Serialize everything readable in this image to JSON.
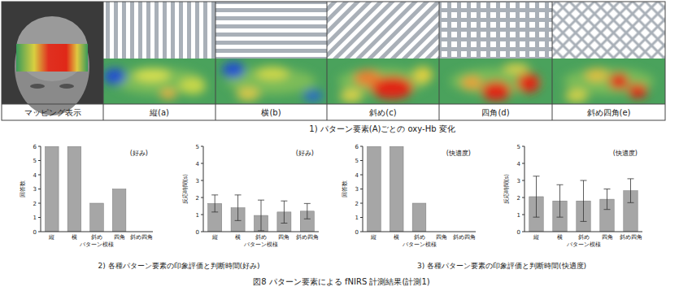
{
  "figure": {
    "title": "図8 パターン要素による fNIRS 計測結果(計測1)",
    "panel_1": {
      "caption": "1) パターン要素(A)ごとの oxy-Hb 変化",
      "columns": [
        "マッピング表示",
        "縦(a)",
        "横(b)",
        "斜め(c)",
        "四角(d)",
        "斜め四角(e)"
      ]
    },
    "captions": [
      "2) 各種パターン要素の印象評価と判断時間(好み)",
      "3) 各種パターン要素の印象評価と判断時間(快適度)"
    ]
  },
  "chart_data": [
    {
      "type": "bar",
      "annotation": "(好み)",
      "x_label": "パターン模様",
      "y_label": "回答数",
      "categories": [
        "縦",
        "横",
        "斜め",
        "四角",
        "斜め四角"
      ],
      "values": [
        6,
        6,
        2,
        3,
        0
      ],
      "color": "#a6a6a6",
      "ylim": [
        0,
        6
      ],
      "yticks": [
        0,
        1,
        2,
        3,
        4,
        5,
        6
      ],
      "grid": false
    },
    {
      "type": "bar",
      "annotation": "(好み)",
      "x_label": "パターン模様",
      "y_label": "反応時間(s)",
      "categories": [
        "縦",
        "横",
        "斜め",
        "四角",
        "斜め四角"
      ],
      "values": [
        1.65,
        1.4,
        0.95,
        1.15,
        1.2
      ],
      "errors": [
        0.5,
        0.75,
        0.9,
        0.65,
        0.45
      ],
      "color": "#a6a6a6",
      "ylim": [
        0,
        5
      ],
      "yticks": [
        0,
        1,
        2,
        3,
        4,
        5
      ],
      "grid": false
    },
    {
      "type": "bar",
      "annotation": "(快適度)",
      "x_label": "パターン模様",
      "y_label": "回答数",
      "categories": [
        "縦",
        "横",
        "斜め",
        "四角",
        "斜め四角"
      ],
      "values": [
        6,
        6,
        2,
        0,
        0
      ],
      "color": "#a6a6a6",
      "ylim": [
        0,
        6
      ],
      "yticks": [
        0,
        1,
        2,
        3,
        4,
        5,
        6
      ],
      "grid": false
    },
    {
      "type": "bar",
      "annotation": "(快適度)",
      "x_label": "パターン模様",
      "y_label": "反応時間(s)",
      "categories": [
        "縦",
        "横",
        "斜め",
        "四角",
        "斜め四角"
      ],
      "values": [
        2.05,
        1.8,
        1.8,
        1.9,
        2.4
      ],
      "errors": [
        1.2,
        0.95,
        1.2,
        0.6,
        0.7
      ],
      "color": "#a6a6a6",
      "ylim": [
        0,
        5
      ],
      "yticks": [
        0,
        1,
        2,
        3,
        4,
        5
      ],
      "grid": false
    }
  ]
}
